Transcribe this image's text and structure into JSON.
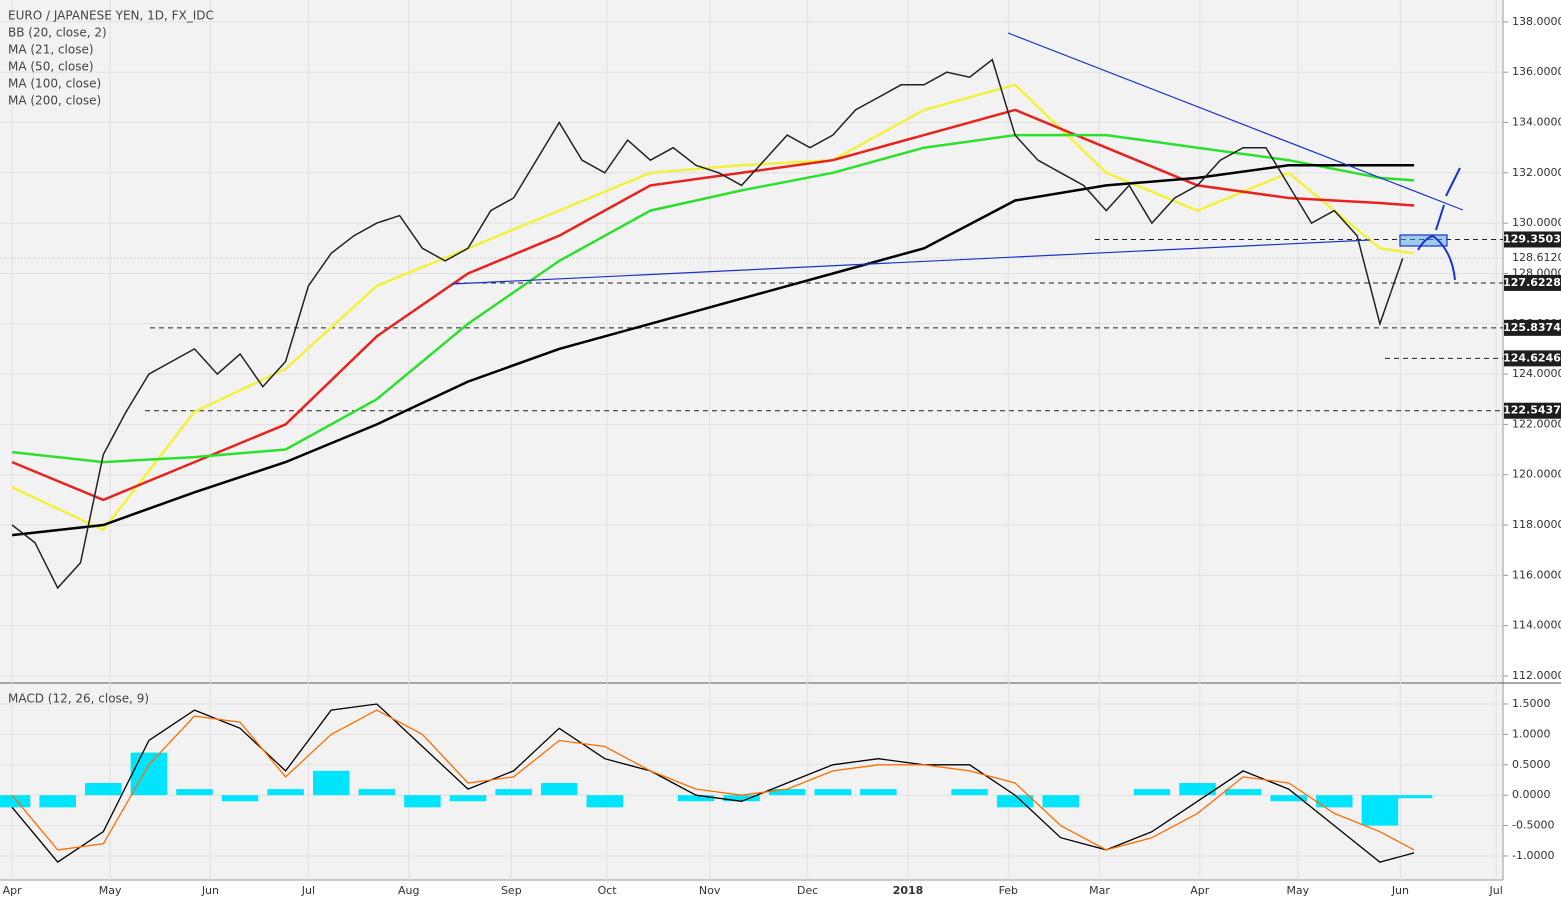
{
  "chart_data": [
    {
      "type": "line",
      "title": "EURO / JAPANESE YEN, 1D, FX_IDC",
      "indicators": [
        "BB (20, close, 2)",
        "MA (21, close)",
        "MA (50, close)",
        "MA (100, close)",
        "MA (200, close)"
      ],
      "xlim": [
        -0.53,
        65.4
      ],
      "xticks": [
        {
          "value": 0,
          "label": "Apr"
        },
        {
          "value": 4.3,
          "label": "May"
        },
        {
          "value": 8.7,
          "label": "Jun"
        },
        {
          "value": 13,
          "label": "Jul"
        },
        {
          "value": 17.4,
          "label": "Aug"
        },
        {
          "value": 21.9,
          "label": "Sep"
        },
        {
          "value": 26.1,
          "label": "Oct"
        },
        {
          "value": 30.6,
          "label": "Nov"
        },
        {
          "value": 34.9,
          "label": "Dec"
        },
        {
          "value": 39.3,
          "label": "2018"
        },
        {
          "value": 43.7,
          "label": "Feb"
        },
        {
          "value": 47.7,
          "label": "Mar"
        },
        {
          "value": 52.1,
          "label": "Apr"
        },
        {
          "value": 56.4,
          "label": "May"
        },
        {
          "value": 60.9,
          "label": "Jun"
        },
        {
          "value": 65.1,
          "label": "Jul"
        }
      ],
      "ylim": [
        111.72,
        138.87
      ],
      "yticks": [
        {
          "value": 112,
          "label": "112.0000"
        },
        {
          "value": 114,
          "label": "114.0000"
        },
        {
          "value": 116,
          "label": "116.0000"
        },
        {
          "value": 118,
          "label": "118.0000"
        },
        {
          "value": 120,
          "label": "120.0000"
        },
        {
          "value": 122,
          "label": "122.0000"
        },
        {
          "value": 124,
          "label": "124.0000"
        },
        {
          "value": 126,
          "label": "126.0000"
        },
        {
          "value": 128,
          "label": "128.0000"
        },
        {
          "value": 130,
          "label": "130.0000"
        },
        {
          "value": 132,
          "label": "132.0000"
        },
        {
          "value": 134,
          "label": "134.0000"
        },
        {
          "value": 136,
          "label": "136.0000"
        },
        {
          "value": 138,
          "label": "138.0000"
        }
      ],
      "levels": [
        129.3503,
        127.6228,
        125.8374,
        124.6246,
        122.5437
      ],
      "last_price": {
        "value": 128.612,
        "label": "128.6120"
      },
      "x": [
        0,
        1,
        2,
        3,
        4,
        5,
        6,
        7,
        8,
        9,
        10,
        11,
        12,
        13,
        14,
        15,
        16,
        17,
        18,
        19,
        20,
        21,
        22,
        23,
        24,
        25,
        26,
        27,
        28,
        29,
        30,
        31,
        32,
        33,
        34,
        35,
        36,
        37,
        38,
        39,
        40,
        41,
        42,
        43,
        44,
        45,
        46,
        47,
        48,
        49,
        50,
        51,
        52,
        53,
        54,
        55,
        56,
        57,
        58,
        59,
        60,
        61
      ],
      "series": [
        {
          "color": "#222222",
          "values": [
            118.0,
            117.3,
            115.5,
            116.5,
            120.8,
            122.5,
            124.0,
            124.5,
            125.0,
            124.0,
            124.8,
            123.5,
            124.5,
            127.5,
            128.8,
            129.5,
            130.0,
            130.3,
            129.0,
            128.5,
            129.0,
            130.5,
            131.0,
            132.5,
            134.0,
            132.5,
            132.0,
            133.3,
            132.5,
            133.0,
            132.3,
            132.0,
            131.5,
            132.5,
            133.5,
            133.0,
            133.5,
            134.5,
            135.0,
            135.5,
            135.5,
            136.0,
            135.8,
            136.5,
            133.5,
            132.5,
            132.0,
            131.5,
            130.5,
            131.5,
            130.0,
            131.0,
            131.5,
            132.5,
            133.0,
            133.0,
            131.5,
            130.0,
            130.5,
            129.5,
            126.0,
            128.6
          ]
        }
      ],
      "overlays": [
        {
          "color": "#f2f23c",
          "x": [
            0,
            4,
            8,
            12,
            16,
            20,
            24,
            28,
            32,
            36,
            40,
            44,
            48,
            52,
            56,
            60,
            61.5
          ],
          "values": [
            119.5,
            117.8,
            122.5,
            124.2,
            127.5,
            129.0,
            130.5,
            132.0,
            132.3,
            132.5,
            134.5,
            135.5,
            132.0,
            130.5,
            132.0,
            129.0,
            128.8
          ]
        },
        {
          "color": "#e8231e",
          "x": [
            0,
            4,
            8,
            12,
            16,
            20,
            24,
            28,
            32,
            36,
            40,
            44,
            48,
            52,
            56,
            60,
            61.5
          ],
          "values": [
            120.5,
            119.0,
            120.5,
            122.0,
            125.5,
            128.0,
            129.5,
            131.5,
            132.0,
            132.5,
            133.5,
            134.5,
            133.0,
            131.5,
            131.0,
            130.8,
            130.7
          ]
        },
        {
          "color": "#2ee02e",
          "x": [
            0,
            4,
            8,
            12,
            16,
            20,
            24,
            28,
            32,
            36,
            40,
            44,
            48,
            52,
            56,
            60,
            61.5
          ],
          "values": [
            120.9,
            120.5,
            120.7,
            121.0,
            123.0,
            126.0,
            128.5,
            130.5,
            131.3,
            132.0,
            133.0,
            133.5,
            133.5,
            133.0,
            132.5,
            131.8,
            131.7
          ]
        },
        {
          "color": "#000000",
          "x": [
            0,
            4,
            8,
            12,
            16,
            20,
            24,
            28,
            32,
            36,
            40,
            44,
            48,
            52,
            56,
            60,
            61.5
          ],
          "values": [
            117.6,
            118.0,
            119.3,
            120.5,
            122.0,
            123.7,
            125.0,
            126.0,
            127.0,
            128.0,
            129.0,
            130.9,
            131.5,
            131.8,
            132.3,
            132.3,
            132.3
          ]
        }
      ]
    },
    {
      "type": "line",
      "title": "MACD (12, 26, close, 9)",
      "ylim": [
        -1.395,
        1.845
      ],
      "yticks": [
        {
          "value": 1.5,
          "label": "1.5000"
        },
        {
          "value": 1,
          "label": "1.0000"
        },
        {
          "value": 0.5,
          "label": "0.5000"
        },
        {
          "value": 0,
          "label": "0.0000"
        },
        {
          "value": -0.5,
          "label": "-0.5000"
        },
        {
          "value": -1,
          "label": "-1.0000"
        }
      ],
      "x": [
        0,
        2,
        4,
        6,
        8,
        10,
        12,
        14,
        16,
        18,
        20,
        22,
        24,
        26,
        28,
        30,
        32,
        34,
        36,
        38,
        40,
        42,
        44,
        46,
        48,
        50,
        52,
        54,
        56,
        58,
        60,
        61.5
      ],
      "series": [
        {
          "color": "#000000",
          "values": [
            -0.2,
            -1.1,
            -0.6,
            0.9,
            1.4,
            1.1,
            0.4,
            1.4,
            1.5,
            0.8,
            0.1,
            0.4,
            1.1,
            0.6,
            0.4,
            0.0,
            -0.1,
            0.2,
            0.5,
            0.6,
            0.5,
            0.5,
            0.0,
            -0.7,
            -0.9,
            -0.6,
            -0.1,
            0.4,
            0.1,
            -0.5,
            -1.1,
            -0.95
          ]
        },
        {
          "color": "#ff6d00",
          "values": [
            0.0,
            -0.9,
            -0.8,
            0.5,
            1.3,
            1.2,
            0.3,
            1.0,
            1.4,
            1.0,
            0.2,
            0.3,
            0.9,
            0.8,
            0.4,
            0.1,
            0.0,
            0.1,
            0.4,
            0.5,
            0.5,
            0.4,
            0.2,
            -0.5,
            -0.9,
            -0.7,
            -0.3,
            0.3,
            0.2,
            -0.3,
            -0.6,
            -0.9
          ]
        }
      ],
      "bars": {
        "color": "#00e5ff",
        "values": [
          -0.2,
          -0.2,
          0.2,
          0.7,
          0.1,
          -0.1,
          0.1,
          0.4,
          0.1,
          -0.2,
          -0.1,
          0.1,
          0.2,
          -0.2,
          0.0,
          -0.1,
          -0.1,
          0.1,
          0.1,
          0.1,
          0.0,
          0.1,
          -0.2,
          -0.2,
          0.0,
          0.1,
          0.2,
          0.1,
          -0.1,
          -0.2,
          -0.5,
          -0.05
        ]
      }
    }
  ]
}
